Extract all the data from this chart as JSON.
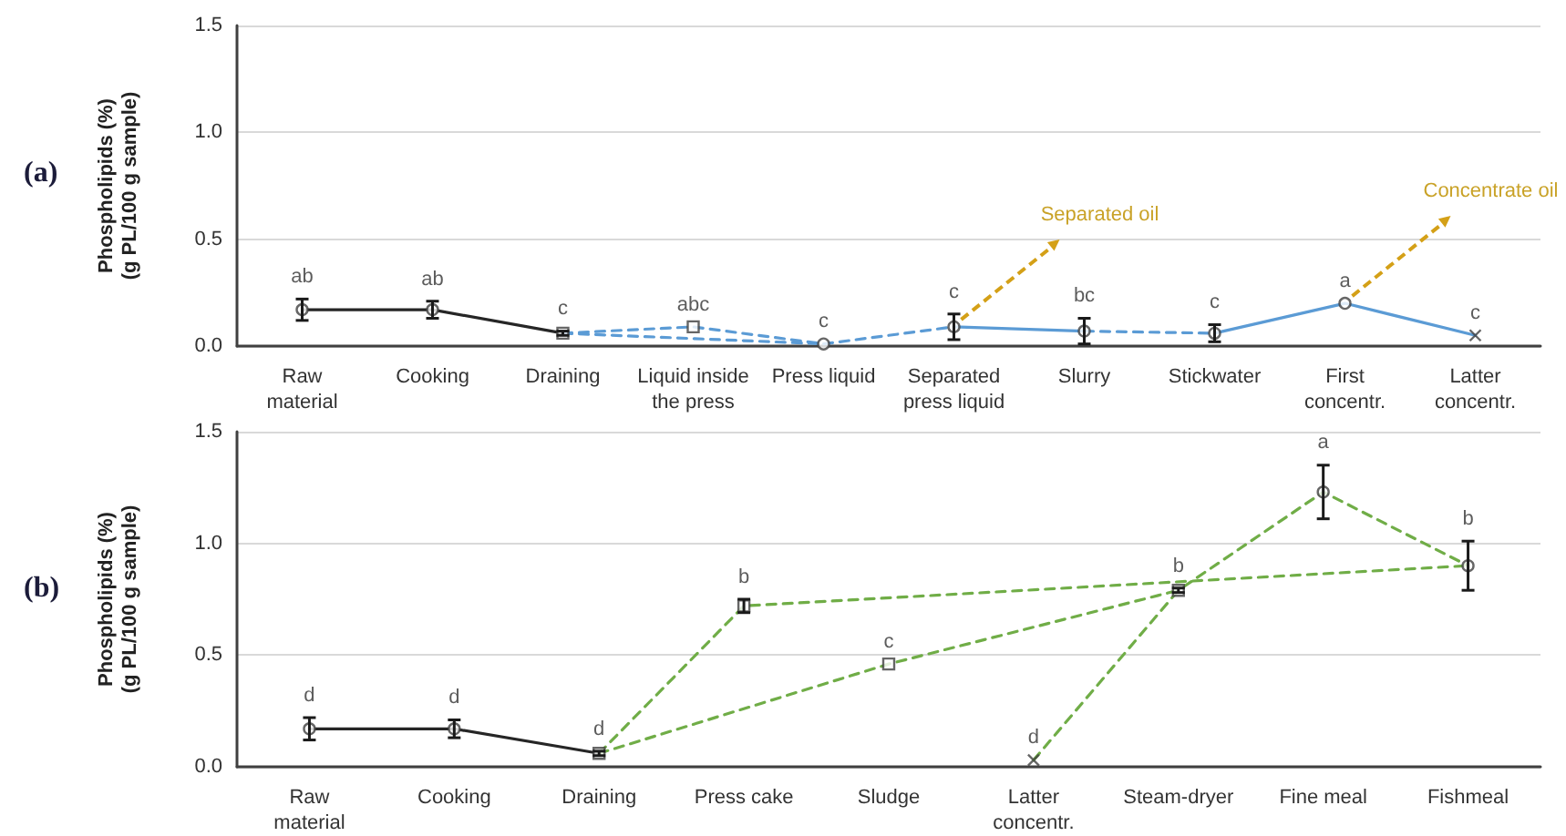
{
  "chart_data": [
    {
      "type": "line",
      "title": "(a)",
      "ylabel": "Phospholipids (%)\n(g PL/100 g sample)",
      "categories": [
        "Raw material",
        "Cooking",
        "Draining",
        "Liquid inside the press",
        "Press liquid",
        "Separated press liquid",
        "Slurry",
        "Stickwater",
        "First concentr.",
        "Latter concentr."
      ],
      "ylim": [
        0,
        1.5
      ],
      "yticks": [
        {
          "value": 0,
          "label": "0.0"
        },
        {
          "value": 0.5,
          "label": "0.5"
        },
        {
          "value": 1,
          "label": "1.0"
        },
        {
          "value": 1.5,
          "label": "1.5"
        }
      ],
      "grid": "y",
      "series": [
        {
          "color": "#262626",
          "line_style": "solid",
          "x": [
            "Raw material",
            "Cooking",
            "Draining"
          ],
          "values": [
            0.17,
            0.17,
            0.06
          ]
        },
        {
          "color": "#5b9bd5",
          "line_style": "dashed",
          "x": [
            "Draining",
            "Liquid inside the press",
            "Press liquid"
          ],
          "values": [
            0.06,
            0.09,
            0.01
          ]
        },
        {
          "color": "#5b9bd5",
          "line_style": "dashed",
          "x": [
            "Draining",
            "Press liquid"
          ],
          "values": [
            0.06,
            0.01
          ]
        },
        {
          "color": "#5b9bd5",
          "line_style": "dashed",
          "x": [
            "Press liquid",
            "Separated press liquid"
          ],
          "values": [
            0.01,
            0.09
          ]
        },
        {
          "color": "#5b9bd5",
          "line_style": "solid",
          "x": [
            "Separated press liquid",
            "Slurry"
          ],
          "values": [
            0.09,
            0.07
          ]
        },
        {
          "color": "#5b9bd5",
          "line_style": "dashed",
          "x": [
            "Slurry",
            "Stickwater"
          ],
          "values": [
            0.07,
            0.06
          ]
        },
        {
          "color": "#5b9bd5",
          "line_style": "solid",
          "x": [
            "Stickwater",
            "First concentr.",
            "Latter concentr."
          ],
          "values": [
            0.06,
            0.2,
            0.05
          ]
        },
        {
          "type": "scatter",
          "color": "#404040",
          "marker": "circle",
          "x": [
            "Raw material",
            "Cooking",
            "Press liquid",
            "Separated press liquid",
            "Slurry",
            "Stickwater",
            "First concentr."
          ],
          "values": [
            0.17,
            0.17,
            0.01,
            0.09,
            0.07,
            0.06,
            0.2
          ],
          "errors": [
            0.05,
            0.04,
            null,
            0.06,
            0.06,
            0.04,
            null
          ],
          "value_labels": [
            "ab",
            "ab",
            "c",
            "c",
            "bc",
            "c",
            "a"
          ]
        },
        {
          "type": "scatter",
          "color": "#404040",
          "marker": "square",
          "x": [
            "Draining",
            "Liquid inside the press"
          ],
          "values": [
            0.06,
            0.09
          ],
          "errors": [
            0.01,
            null
          ],
          "value_labels": [
            "c",
            "abc"
          ]
        },
        {
          "type": "scatter",
          "color": "#404040",
          "marker": "cross",
          "x": [
            "Latter concentr."
          ],
          "values": [
            0.05
          ],
          "errors": [
            null
          ],
          "value_labels": [
            "c"
          ]
        }
      ],
      "annotations": [
        {
          "text": "Separated oil",
          "x": "Separated press liquid",
          "y": 0.09
        },
        {
          "text": "Concentrate oil",
          "x": "First concentr.",
          "y": 0.2
        }
      ]
    },
    {
      "type": "line",
      "title": "(b)",
      "ylabel": "Phospholipids (%)\n(g PL/100 g sample)",
      "categories": [
        "Raw material",
        "Cooking",
        "Draining",
        "Press cake",
        "Sludge",
        "Latter concentr.",
        "Steam-dryer",
        "Fine meal",
        "Fishmeal"
      ],
      "ylim": [
        0,
        1.5
      ],
      "yticks": [
        {
          "value": 0,
          "label": "0.0"
        },
        {
          "value": 0.5,
          "label": "0.5"
        },
        {
          "value": 1,
          "label": "1.0"
        },
        {
          "value": 1.5,
          "label": "1.5"
        }
      ],
      "grid": "y",
      "series": [
        {
          "color": "#262626",
          "line_style": "solid",
          "x": [
            "Raw material",
            "Cooking",
            "Draining"
          ],
          "values": [
            0.17,
            0.17,
            0.06
          ]
        },
        {
          "color": "#70ad47",
          "line_style": "dashed",
          "x": [
            "Draining",
            "Press cake",
            "Fishmeal"
          ],
          "values": [
            0.06,
            0.72,
            0.9
          ]
        },
        {
          "color": "#70ad47",
          "line_style": "dashed",
          "x": [
            "Draining",
            "Sludge",
            "Steam-dryer"
          ],
          "values": [
            0.06,
            0.46,
            0.79
          ]
        },
        {
          "color": "#70ad47",
          "line_style": "dashed",
          "x": [
            "Latter concentr.",
            "Steam-dryer",
            "Fine meal",
            "Fishmeal"
          ],
          "values": [
            0.03,
            0.79,
            1.23,
            0.9
          ]
        },
        {
          "type": "scatter",
          "color": "#404040",
          "marker": "circle",
          "x": [
            "Raw material",
            "Cooking",
            "Fine meal",
            "Fishmeal"
          ],
          "values": [
            0.17,
            0.17,
            1.23,
            0.9
          ],
          "errors": [
            0.05,
            0.04,
            0.12,
            0.11
          ],
          "value_labels": [
            "d",
            "d",
            "a",
            "b"
          ]
        },
        {
          "type": "scatter",
          "color": "#404040",
          "marker": "square",
          "x": [
            "Draining",
            "Press cake",
            "Sludge",
            "Steam-dryer"
          ],
          "values": [
            0.06,
            0.72,
            0.46,
            0.79
          ],
          "errors": [
            0.01,
            0.03,
            null,
            0.01
          ],
          "value_labels": [
            "d",
            "b",
            "c",
            "b"
          ]
        },
        {
          "type": "scatter",
          "color": "#404040",
          "marker": "cross",
          "x": [
            "Latter concentr."
          ],
          "values": [
            0.03
          ],
          "errors": [
            null
          ],
          "value_labels": [
            "d"
          ]
        }
      ]
    }
  ]
}
